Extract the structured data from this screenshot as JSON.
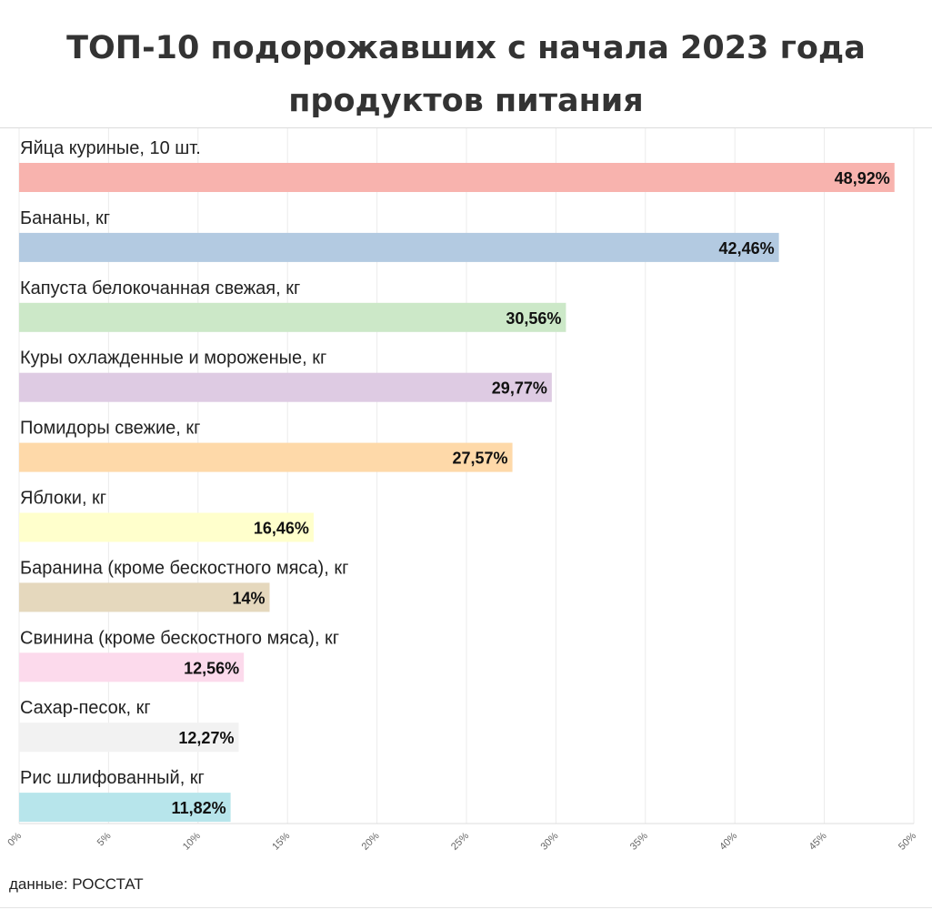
{
  "title_lines": [
    "ТОП-10 подорожавших с начала 2023 года",
    "продуктов питания"
  ],
  "source_label": "данные: РОССТАТ",
  "chart_data": {
    "type": "bar",
    "orientation": "horizontal",
    "title": "ТОП-10 подорожавших с начала 2023 года продуктов питания",
    "xlim": [
      0,
      50
    ],
    "grid": true,
    "x_ticks": [
      "0%",
      "5%",
      "10%",
      "15%",
      "20%",
      "25%",
      "30%",
      "35%",
      "40%",
      "45%",
      "50%"
    ],
    "categories": [
      "Яйца куриные, 10 шт.",
      "Бананы, кг",
      "Капуста белокочанная свежая, кг",
      "Куры охлажденные и мороженые, кг",
      "Помидоры свежие, кг",
      "Яблоки, кг",
      "Баранина (кроме бескостного мяса), кг",
      "Свинина (кроме бескостного мяса), кг",
      "Сахар-песок, кг",
      "Рис шлифованный, кг"
    ],
    "values": [
      48.92,
      42.46,
      30.56,
      29.77,
      27.57,
      16.46,
      14,
      12.56,
      12.27,
      11.82
    ],
    "value_labels": [
      "48,92%",
      "42,46%",
      "30,56%",
      "29,77%",
      "27,57%",
      "16,46%",
      "14%",
      "12,56%",
      "12,27%",
      "11,82%"
    ],
    "colors": [
      "#f8b3ae",
      "#b3cae1",
      "#cce8c8",
      "#decbe3",
      "#fed9a9",
      "#ffffcc",
      "#e5d8bd",
      "#fcdaec",
      "#f2f2f2",
      "#b7e5eb"
    ]
  }
}
